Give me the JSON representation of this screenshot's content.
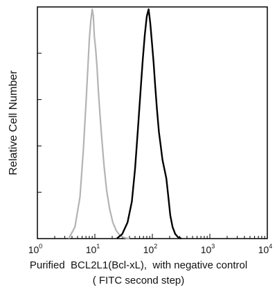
{
  "chart_data": {
    "type": "line",
    "title": "",
    "xlabel_lines": [
      "Purified  BCL2L1(Bcl-xL),  with negative control",
      "( FITC second step)"
    ],
    "ylabel": "Relative Cell Number",
    "x_scale": "log",
    "xlim": [
      1,
      10000
    ],
    "ylim": [
      0,
      1
    ],
    "x_ticks": [
      {
        "base": "10",
        "exp": "0",
        "value": 1
      },
      {
        "base": "10",
        "exp": "1",
        "value": 10
      },
      {
        "base": "10",
        "exp": "2",
        "value": 100
      },
      {
        "base": "10",
        "exp": "3",
        "value": 1000
      },
      {
        "base": "10",
        "exp": "4",
        "value": 10000
      }
    ],
    "y_ticks": [
      0,
      0.2,
      0.4,
      0.6,
      0.8,
      1.0
    ],
    "grid": false,
    "series": [
      {
        "color": "#b3b3b3",
        "stroke_width": 2.2,
        "x": [
          3.5,
          4.5,
          5.5,
          6.3,
          7.0,
          7.6,
          8.0,
          8.5,
          9.0,
          9.4,
          9.8,
          10.3,
          10.9,
          11.5,
          12.3,
          13.3,
          14.5,
          16.0,
          18.0,
          20.5,
          23.5,
          27.0,
          31.0,
          35.0,
          40.0
        ],
        "y": [
          0.0,
          0.05,
          0.18,
          0.38,
          0.58,
          0.75,
          0.86,
          0.94,
          0.99,
          0.96,
          0.87,
          0.82,
          0.74,
          0.64,
          0.53,
          0.42,
          0.31,
          0.21,
          0.13,
          0.07,
          0.035,
          0.015,
          0.006,
          0.002,
          0.0
        ]
      },
      {
        "color": "#000000",
        "stroke_width": 2.4,
        "x": [
          24,
          30,
          37,
          44,
          50,
          56,
          62,
          68,
          74,
          80,
          86,
          92,
          98,
          105,
          112,
          120,
          130,
          140,
          150,
          162,
          175,
          190,
          205,
          225,
          250,
          280,
          320
        ],
        "y": [
          0.0,
          0.02,
          0.07,
          0.16,
          0.3,
          0.47,
          0.63,
          0.77,
          0.88,
          0.96,
          0.99,
          0.93,
          0.85,
          0.76,
          0.66,
          0.56,
          0.46,
          0.4,
          0.34,
          0.3,
          0.26,
          0.18,
          0.1,
          0.05,
          0.02,
          0.006,
          0.0
        ]
      }
    ]
  }
}
